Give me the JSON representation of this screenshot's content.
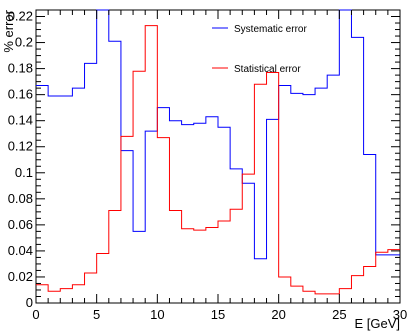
{
  "chart_data": {
    "type": "step",
    "title": "",
    "xlabel": "E [GeV]",
    "ylabel": "% error",
    "xlim": [
      0,
      30
    ],
    "ylim": [
      0,
      0.225
    ],
    "x_ticks": [
      "0",
      "5",
      "10",
      "15",
      "20",
      "25",
      "30"
    ],
    "y_ticks": [
      "0",
      "0.02",
      "0.04",
      "0.06",
      "0.08",
      "0.1",
      "0.12",
      "0.14",
      "0.16",
      "0.18",
      "0.2",
      "0.22"
    ],
    "bin_edges": [
      0,
      1,
      2,
      3,
      4,
      5,
      6,
      7,
      8,
      9,
      10,
      11,
      12,
      13,
      14,
      15,
      16,
      17,
      18,
      19,
      20,
      21,
      22,
      23,
      24,
      25,
      26,
      27,
      28,
      29,
      30
    ],
    "series": [
      {
        "name": "Systematic error",
        "color": "#0000ff",
        "values": [
          0.167,
          0.159,
          0.159,
          0.165,
          0.184,
          0.225,
          0.201,
          0.117,
          0.055,
          0.132,
          0.15,
          0.14,
          0.137,
          0.138,
          0.143,
          0.135,
          0.103,
          0.092,
          0.034,
          0.141,
          0.167,
          0.161,
          0.16,
          0.165,
          0.175,
          0.225,
          0.204,
          0.114,
          0.037,
          0.037
        ]
      },
      {
        "name": "Statistical error",
        "color": "#ff0000",
        "values": [
          0.014,
          0.009,
          0.011,
          0.014,
          0.023,
          0.038,
          0.071,
          0.128,
          0.178,
          0.213,
          0.127,
          0.071,
          0.057,
          0.056,
          0.058,
          0.063,
          0.072,
          0.099,
          0.168,
          0.177,
          0.02,
          0.013,
          0.009,
          0.007,
          0.007,
          0.011,
          0.021,
          0.028,
          0.039,
          0.041
        ]
      }
    ],
    "legend": {
      "placement": "top-right"
    },
    "grid": false
  }
}
